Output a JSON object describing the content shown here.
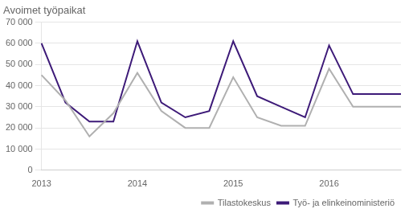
{
  "chart_data": {
    "type": "line",
    "title": "Avoimet työpaikat",
    "categories": [
      "2013",
      null,
      null,
      null,
      "2014",
      null,
      null,
      null,
      "2015",
      null,
      null,
      null,
      "2016",
      null,
      null,
      null
    ],
    "series": [
      {
        "name": "Tilastokeskus",
        "color": "#b0b0b0",
        "values": [
          45000,
          33000,
          16000,
          27000,
          46000,
          28000,
          20000,
          20000,
          44000,
          25000,
          21000,
          21000,
          48000,
          30000,
          30000,
          30000
        ]
      },
      {
        "name": "Työ- ja elinkeinoministeriö",
        "color": "#3d1a78",
        "values": [
          60000,
          32000,
          23000,
          23000,
          61000,
          32000,
          25000,
          28000,
          61000,
          35000,
          30000,
          25000,
          59000,
          36000,
          36000,
          36000
        ]
      }
    ],
    "ylim": [
      0,
      70000
    ],
    "yticks": [
      0,
      {
        "value": 10000,
        "label": "10 000"
      },
      {
        "value": 20000,
        "label": "20 000"
      },
      {
        "value": 30000,
        "label": "30 000"
      },
      {
        "value": 40000,
        "label": "40 000"
      },
      {
        "value": 50000,
        "label": "50 000"
      },
      {
        "value": 60000,
        "label": "60 000"
      },
      {
        "value": 70000,
        "label": "70 000"
      }
    ],
    "grid": true,
    "legend": "lower right"
  }
}
